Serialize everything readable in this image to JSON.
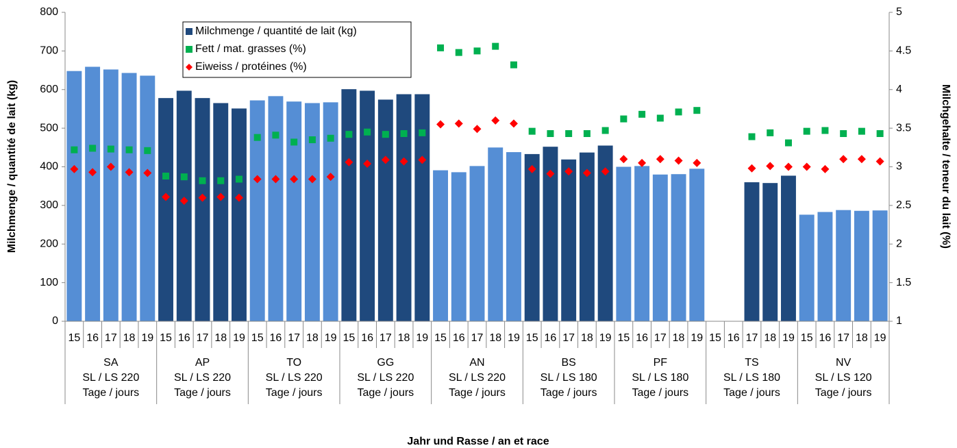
{
  "chart_data": {
    "type": "bar",
    "x_label": "Jahr und Rasse / an et race",
    "y_label": "Milchmenge / quantité de lait (kg)",
    "y2_label": "Milchgehalte / teneur du lait (%)",
    "categories": [
      "15",
      "16",
      "17",
      "18",
      "19",
      "15",
      "16",
      "17",
      "18",
      "19",
      "15",
      "16",
      "17",
      "18",
      "19",
      "15",
      "16",
      "17",
      "18",
      "19",
      "15",
      "16",
      "17",
      "18",
      "19",
      "15",
      "16",
      "17",
      "18",
      "19",
      "15",
      "16",
      "17",
      "18",
      "19",
      "15",
      "16",
      "17",
      "18",
      "19",
      "15",
      "16",
      "17",
      "18",
      "19"
    ],
    "groups": [
      {
        "label": [
          "SA",
          "SL / LS 220",
          "Tage / jours"
        ],
        "color": "#558ed5"
      },
      {
        "label": [
          "AP",
          "SL / LS 220",
          "Tage / jours"
        ],
        "color": "#1f497d"
      },
      {
        "label": [
          "TO",
          "SL / LS 220",
          "Tage / jours"
        ],
        "color": "#558ed5"
      },
      {
        "label": [
          "GG",
          "SL / LS 220",
          "Tage / jours"
        ],
        "color": "#1f497d"
      },
      {
        "label": [
          "AN",
          "SL / LS 220",
          "Tage / jours"
        ],
        "color": "#558ed5"
      },
      {
        "label": [
          "BS",
          "SL / LS 180",
          "Tage / jours"
        ],
        "color": "#1f497d"
      },
      {
        "label": [
          "PF",
          "SL / LS 180",
          "Tage / jours"
        ],
        "color": "#558ed5"
      },
      {
        "label": [
          "TS",
          "SL / LS 180",
          "Tage / jours"
        ],
        "color": "#1f497d"
      },
      {
        "label": [
          "NV",
          "SL / LS 120",
          "Tage / jours"
        ],
        "color": "#558ed5"
      }
    ],
    "series": [
      {
        "name": "Milchmenge / quantité de lait (kg)",
        "type": "bar",
        "color": "#1f497d",
        "values": [
          648,
          659,
          652,
          643,
          636,
          578,
          597,
          578,
          565,
          551,
          572,
          583,
          569,
          565,
          567,
          601,
          597,
          574,
          588,
          588,
          391,
          386,
          402,
          450,
          438,
          433,
          452,
          419,
          437,
          455,
          400,
          402,
          380,
          381,
          395,
          null,
          null,
          360,
          358,
          377,
          276,
          283,
          288,
          286,
          287
        ]
      },
      {
        "name": "Fett / mat. grasses (%)",
        "type": "scatter",
        "marker": "square",
        "axis": "y2",
        "color": "#00b050",
        "values": [
          3.22,
          3.24,
          3.23,
          3.22,
          3.21,
          2.88,
          2.87,
          2.82,
          2.82,
          2.84,
          3.38,
          3.41,
          3.32,
          3.35,
          3.37,
          3.42,
          3.45,
          3.42,
          3.43,
          3.44,
          4.54,
          4.48,
          4.5,
          4.56,
          4.32,
          3.46,
          3.43,
          3.43,
          3.43,
          3.47,
          3.62,
          3.68,
          3.63,
          3.71,
          3.73,
          null,
          null,
          3.39,
          3.44,
          3.31,
          3.46,
          3.47,
          3.43,
          3.46,
          3.43
        ]
      },
      {
        "name": "Eiweiss / protéines (%)",
        "type": "scatter",
        "marker": "diamond",
        "axis": "y2",
        "color": "#ff0000",
        "values": [
          2.97,
          2.93,
          3.0,
          2.93,
          2.92,
          2.61,
          2.56,
          2.6,
          2.61,
          2.6,
          2.84,
          2.84,
          2.84,
          2.84,
          2.87,
          3.06,
          3.04,
          3.09,
          3.07,
          3.09,
          3.55,
          3.56,
          3.49,
          3.6,
          3.56,
          2.97,
          2.91,
          2.94,
          2.92,
          2.94,
          3.1,
          3.05,
          3.1,
          3.08,
          3.05,
          null,
          null,
          2.98,
          3.01,
          3.0,
          3.0,
          2.97,
          3.1,
          3.1,
          3.07
        ]
      }
    ],
    "ylim": [
      0,
      800
    ],
    "yticks": [
      0,
      100,
      200,
      300,
      400,
      500,
      600,
      700,
      800
    ],
    "y2lim": [
      1,
      5
    ],
    "y2ticks": [
      1,
      1.5,
      2,
      2.5,
      3,
      3.5,
      4,
      4.5,
      5
    ]
  }
}
